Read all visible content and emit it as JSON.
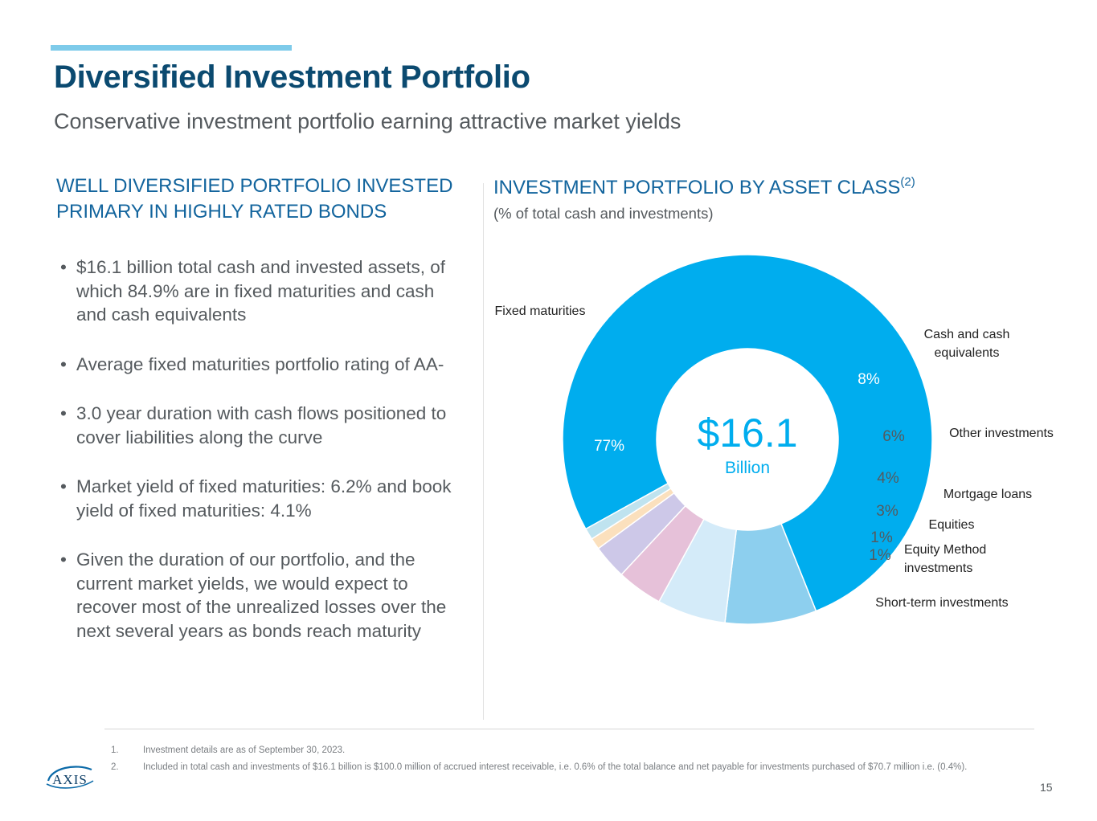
{
  "header": {
    "title": "Diversified Investment Portfolio",
    "subtitle": "Conservative investment portfolio earning attractive market yields"
  },
  "left": {
    "heading": "WELL DIVERSIFIED PORTFOLIO INVESTED PRIMARY IN HIGHLY RATED BONDS",
    "bullets": [
      "$16.1 billion total cash and invested assets, of which 84.9% are in fixed maturities and cash and cash equivalents",
      "Average fixed maturities portfolio rating of AA-",
      "3.0 year duration with cash flows positioned to cover liabilities along the curve",
      "Market yield of fixed maturities: 6.2% and book yield of fixed maturities: 4.1%",
      "Given the duration of our portfolio, and the current market yields, we would expect to recover most of the unrealized losses over the next several years as bonds reach maturity"
    ]
  },
  "right": {
    "heading": "INVESTMENT PORTFOLIO BY ASSET CLASS",
    "heading_sup": "(2)",
    "subheading": "(% of total cash and investments)"
  },
  "chart_data": {
    "type": "pie",
    "center_value": "$16.1",
    "center_unit": "Billion",
    "slices": [
      {
        "label": "Fixed maturities",
        "value": 77,
        "value_label": "77%",
        "color": "#00adee"
      },
      {
        "label": "Cash and cash equivalents",
        "value": 8,
        "value_label": "8%",
        "color": "#8dcfee"
      },
      {
        "label": "Other investments",
        "value": 6,
        "value_label": "6%",
        "color": "#d4ebf9"
      },
      {
        "label": "Mortgage loans",
        "value": 4,
        "value_label": "4%",
        "color": "#e6c1d9"
      },
      {
        "label": "Equities",
        "value": 3,
        "value_label": "3%",
        "color": "#cdc8e8"
      },
      {
        "label": "Equity Method investments",
        "value": 1,
        "value_label": "1%",
        "color": "#fbe0bd"
      },
      {
        "label": "Short-term investments",
        "value": 1,
        "value_label": "1%",
        "color": "#bfe3ef"
      }
    ]
  },
  "footnotes": [
    {
      "num": "1.",
      "text": "Investment details are as of September 30, 2023."
    },
    {
      "num": "2.",
      "text": "Included in total cash and investments of $16.1 billion is $100.0 million of accrued interest receivable, i.e. 0.6% of the total balance and net payable for investments purchased of $70.7 million i.e. (0.4%)."
    }
  ],
  "logo": {
    "text": "AXIS"
  },
  "page_number": "15",
  "colors": {
    "title": "#0b4a70",
    "heading": "#12649d",
    "accent_bar": "#7ecbea",
    "body_text": "#555a5e"
  }
}
